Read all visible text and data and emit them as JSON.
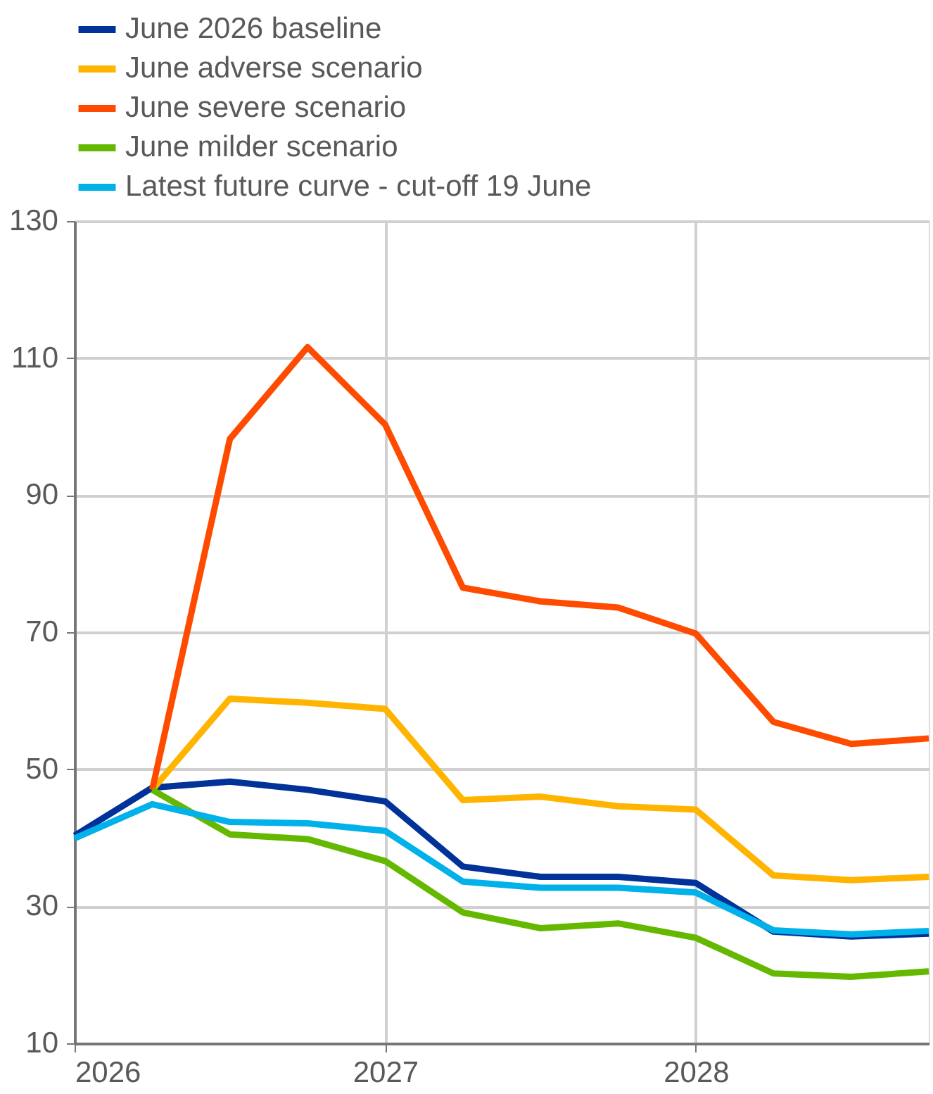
{
  "chart_data": {
    "type": "line",
    "x": [
      2026,
      2026.25,
      2026.5,
      2026.75,
      2027,
      2027.25,
      2027.5,
      2027.75,
      2028,
      2028.25,
      2028.5,
      2028.75
    ],
    "series": [
      {
        "name": "June 2026 baseline",
        "color": "#003299",
        "values": [
          40.3,
          47.3,
          48.2,
          47.0,
          45.3,
          35.8,
          34.3,
          34.3,
          33.4,
          26.3,
          25.6,
          26.0
        ]
      },
      {
        "name": "June adverse scenario",
        "color": "#ffb400",
        "values": [
          null,
          47.0,
          60.3,
          59.7,
          58.8,
          45.5,
          46.0,
          44.6,
          44.1,
          34.5,
          33.8,
          34.3
        ]
      },
      {
        "name": "June severe scenario",
        "color": "#ff4b00",
        "values": [
          null,
          47.0,
          98.2,
          111.6,
          100.3,
          76.5,
          74.5,
          73.6,
          69.8,
          56.9,
          53.7,
          54.5
        ]
      },
      {
        "name": "June milder scenario",
        "color": "#65b800",
        "values": [
          null,
          47.0,
          40.5,
          39.8,
          36.6,
          29.1,
          26.8,
          27.5,
          25.4,
          20.2,
          19.7,
          20.5
        ]
      },
      {
        "name": "Latest future curve - cut-off 19 June",
        "color": "#00b1ea",
        "values": [
          39.9,
          44.9,
          42.3,
          42.1,
          41.0,
          33.6,
          32.7,
          32.7,
          32.0,
          26.5,
          25.9,
          26.4
        ]
      }
    ],
    "xlim": [
      2026,
      2028.75
    ],
    "xticks": [
      2026,
      2027,
      2028
    ],
    "ylim": [
      10,
      130
    ],
    "yticks": [
      10,
      30,
      50,
      70,
      90,
      110,
      130
    ],
    "grid": true,
    "legend": "top",
    "marker": "none",
    "line_style": "solid"
  }
}
